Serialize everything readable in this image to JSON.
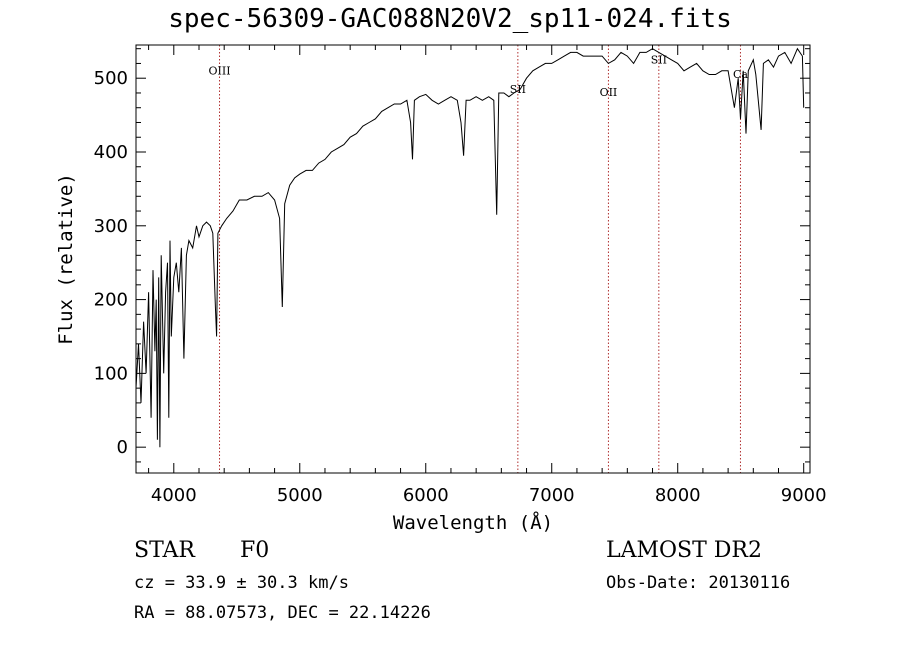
{
  "chart_data": {
    "type": "line",
    "title": "spec-56309-GAC088N20V2_sp11-024.fits",
    "xlabel": "Wavelength (Å)",
    "ylabel": "Flux (relative)",
    "xlim": [
      3700,
      9050
    ],
    "ylim": [
      -35,
      545
    ],
    "xticks": [
      4000,
      5000,
      6000,
      7000,
      8000,
      9000
    ],
    "yticks": [
      0,
      100,
      200,
      300,
      400,
      500
    ],
    "series": [
      {
        "x": [
          3700,
          3720,
          3740,
          3760,
          3780,
          3800,
          3820,
          3835,
          3850,
          3860,
          3870,
          3880,
          3890,
          3900,
          3920,
          3935,
          3950,
          3960,
          3970,
          3980,
          4000,
          4020,
          4040,
          4060,
          4080,
          4100,
          4120,
          4150,
          4180,
          4200,
          4230,
          4260,
          4290,
          4310,
          4330,
          4340,
          4350,
          4380,
          4420,
          4470,
          4520,
          4580,
          4640,
          4700,
          4750,
          4800,
          4840,
          4861,
          4880,
          4920,
          4960,
          5000,
          5050,
          5100,
          5150,
          5200,
          5250,
          5300,
          5350,
          5400,
          5450,
          5500,
          5550,
          5600,
          5650,
          5700,
          5750,
          5800,
          5850,
          5880,
          5895,
          5910,
          5950,
          6000,
          6050,
          6100,
          6150,
          6200,
          6250,
          6280,
          6300,
          6320,
          6350,
          6400,
          6450,
          6500,
          6540,
          6563,
          6580,
          6620,
          6660,
          6700,
          6750,
          6800,
          6850,
          6900,
          6950,
          7000,
          7050,
          7100,
          7150,
          7200,
          7250,
          7300,
          7350,
          7400,
          7450,
          7500,
          7550,
          7600,
          7650,
          7700,
          7750,
          7800,
          7850,
          7900,
          7950,
          8000,
          8050,
          8100,
          8150,
          8200,
          8250,
          8300,
          8350,
          8400,
          8450,
          8480,
          8498,
          8520,
          8542,
          8560,
          8600,
          8620,
          8662,
          8680,
          8720,
          8760,
          8800,
          8850,
          8900,
          8950,
          8990,
          9000
        ],
        "y": [
          80,
          140,
          60,
          170,
          100,
          210,
          40,
          240,
          130,
          200,
          10,
          230,
          0,
          260,
          100,
          210,
          250,
          40,
          280,
          150,
          230,
          250,
          210,
          270,
          120,
          260,
          280,
          270,
          300,
          285,
          300,
          305,
          300,
          290,
          190,
          150,
          290,
          300,
          310,
          320,
          335,
          335,
          340,
          340,
          345,
          335,
          310,
          190,
          330,
          355,
          365,
          370,
          375,
          375,
          385,
          390,
          400,
          405,
          410,
          420,
          425,
          435,
          440,
          445,
          455,
          460,
          465,
          465,
          470,
          440,
          390,
          470,
          475,
          478,
          470,
          465,
          470,
          475,
          470,
          440,
          395,
          470,
          470,
          475,
          470,
          475,
          470,
          315,
          480,
          480,
          475,
          480,
          485,
          500,
          510,
          515,
          520,
          520,
          525,
          530,
          535,
          535,
          530,
          530,
          530,
          530,
          520,
          525,
          535,
          530,
          520,
          535,
          535,
          540,
          535,
          530,
          525,
          520,
          510,
          515,
          520,
          510,
          505,
          505,
          510,
          510,
          460,
          500,
          445,
          510,
          425,
          510,
          525,
          505,
          430,
          520,
          525,
          515,
          530,
          535,
          520,
          540,
          530,
          460
        ]
      }
    ],
    "annotations": [
      {
        "label": "OIII",
        "x": 4363,
        "label_y": 505
      },
      {
        "label": "SII",
        "x": 6731,
        "label_y": 480
      },
      {
        "label": "OII",
        "x": 7450,
        "label_y": 476
      },
      {
        "label": "SII",
        "x": 7850,
        "label_y": 520
      },
      {
        "label": "Ca",
        "x": 8498,
        "label_y": 500
      }
    ]
  },
  "footer": {
    "object_type": "STAR",
    "subclass": "F0",
    "survey": "LAMOST DR2",
    "cz": "cz = 33.9 ± 30.3 km/s",
    "obs_date": "Obs-Date: 20130116",
    "coords": "RA =  88.07573, DEC =  22.14226"
  },
  "colors": {
    "line": "#000000",
    "marker_line": "#b03030"
  }
}
